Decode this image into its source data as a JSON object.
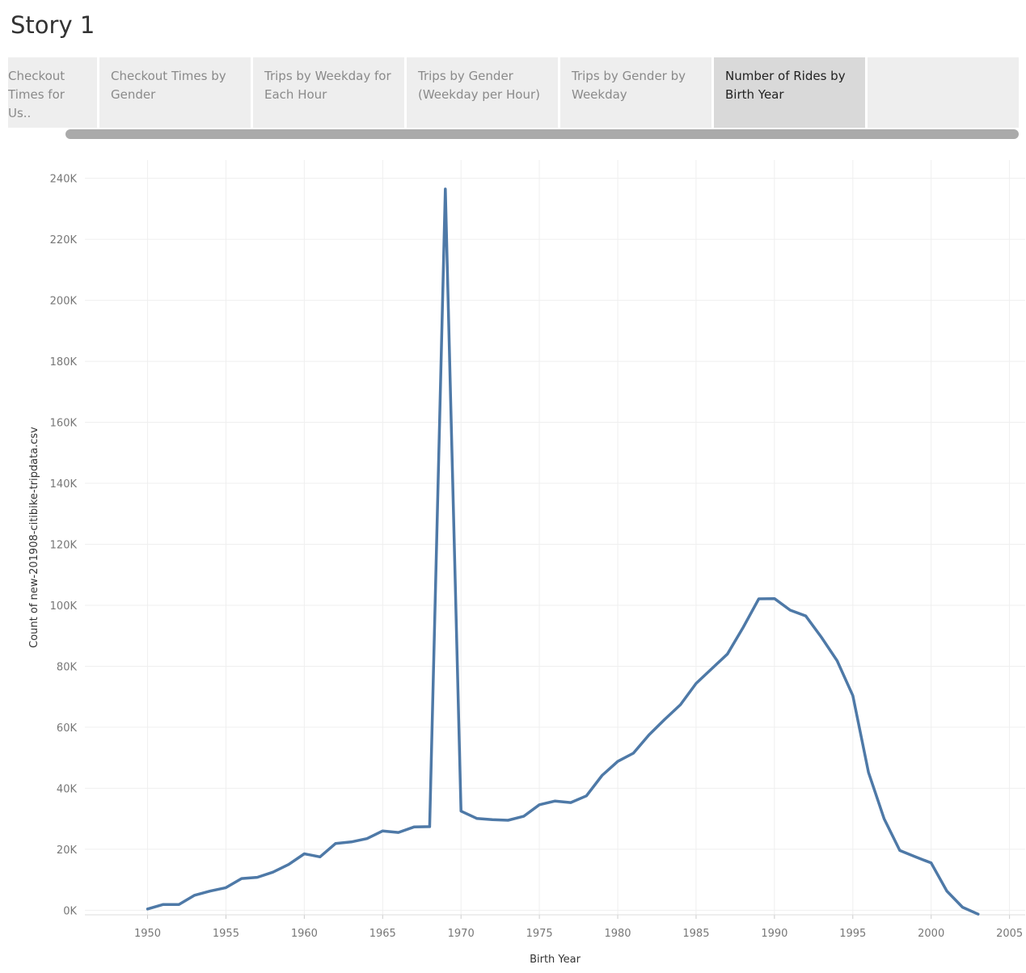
{
  "story": {
    "title": "Story 1"
  },
  "tabs": [
    {
      "label": "Checkout Times for Us..",
      "active": false
    },
    {
      "label": "Checkout Times by Gender",
      "active": false
    },
    {
      "label": "Trips by Weekday for Each Hour",
      "active": false
    },
    {
      "label": "Trips by Gender (Weekday per Hour)",
      "active": false
    },
    {
      "label": "Trips by Gender by Weekday",
      "active": false
    },
    {
      "label": "Number of Rides by Birth Year",
      "active": true
    }
  ],
  "colors": {
    "line": "#4e79a7",
    "grid": "#efefef",
    "active_tab": "#d9d9d9",
    "tab": "#eeeeee"
  },
  "chart_data": {
    "type": "line",
    "xlabel": "Birth Year",
    "ylabel": "Count of new-201908-citibike-tripdata.csv",
    "xlim": [
      1946,
      2006
    ],
    "ylim": [
      -1500,
      246000
    ],
    "x_ticks": [
      1950,
      1955,
      1960,
      1965,
      1970,
      1975,
      1980,
      1985,
      1990,
      1995,
      2000,
      2005
    ],
    "y_ticks": [
      0,
      20000,
      40000,
      60000,
      80000,
      100000,
      120000,
      140000,
      160000,
      180000,
      200000,
      220000,
      240000
    ],
    "y_tick_labels": [
      "0K",
      "20K",
      "40K",
      "60K",
      "80K",
      "100K",
      "120K",
      "140K",
      "160K",
      "180K",
      "200K",
      "220K",
      "240K"
    ],
    "grid": true,
    "x": [
      1950,
      1951,
      1952,
      1953,
      1954,
      1955,
      1956,
      1957,
      1958,
      1959,
      1960,
      1961,
      1962,
      1963,
      1964,
      1965,
      1966,
      1967,
      1968,
      1969,
      1970,
      1971,
      1972,
      1973,
      1974,
      1975,
      1976,
      1977,
      1978,
      1979,
      1980,
      1981,
      1982,
      1983,
      1984,
      1985,
      1986,
      1987,
      1988,
      1989,
      1990,
      1991,
      1992,
      1993,
      1994,
      1995,
      1996,
      1997,
      1998,
      1999,
      2000,
      2001,
      2002,
      2003
    ],
    "y": [
      400,
      1900,
      1900,
      4900,
      6300,
      7400,
      10400,
      10800,
      12500,
      15000,
      18500,
      17500,
      21900,
      22400,
      23500,
      26000,
      25500,
      27300,
      27400,
      236500,
      32500,
      30100,
      29700,
      29500,
      30800,
      34600,
      35800,
      35300,
      37500,
      44200,
      48800,
      51500,
      57500,
      62600,
      67400,
      74400,
      79200,
      84000,
      92700,
      102100,
      102200,
      98400,
      96500,
      89500,
      81800,
      70400,
      45200,
      30000,
      19600,
      17500,
      15500,
      6300,
      1000,
      -1300
    ]
  }
}
